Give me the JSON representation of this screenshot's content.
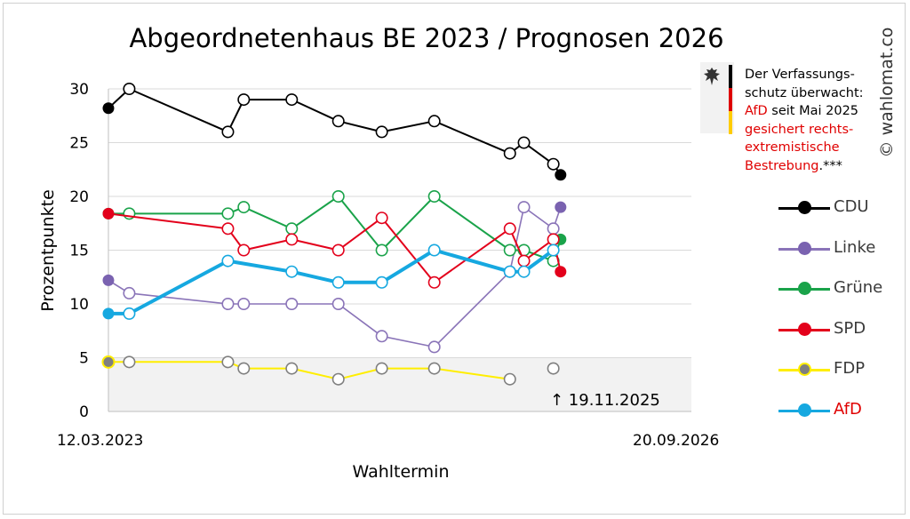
{
  "title": "Abgeordnetenhaus BE 2023 / Prognosen 2026",
  "side_credit": "© wahlomat.co",
  "notice": {
    "line1": "Der Verfassungs-",
    "line2": "schutz überwacht:",
    "line3_party": "AfD",
    "line3_rest": " seit Mai 2025",
    "line4": "gesichert rechts-",
    "line5": "extremistische",
    "line6": "Bestrebung",
    "line6_suffix": ".***",
    "flag_colors": [
      "#000000",
      "#dd0000",
      "#ffcc00"
    ]
  },
  "annotation": "↑ 19.11.2025",
  "colors": {
    "grid": "#d9d9d9",
    "threshold_band": "#f2f2f2",
    "axis": "#bfbfbf"
  },
  "chart_data": {
    "type": "line",
    "title": "Abgeordnetenhaus BE 2023 / Prognosen 2026",
    "xlabel": "Wahltermin",
    "ylabel": "Prozentpunkte",
    "x_start_label": "12.03.2023",
    "x_end_label": "20.09.2026",
    "xlim": [
      "2023-03-12",
      "2026-09-20"
    ],
    "ylim": [
      0,
      30
    ],
    "yticks": [
      0,
      5,
      10,
      15,
      20,
      25,
      30
    ],
    "grid": true,
    "legend_position": "right",
    "shaded_band": [
      0,
      5
    ],
    "series": [
      {
        "name": "CDU",
        "color": "#000000",
        "fill": "#000000",
        "label_color": "#3a3a3a",
        "width": 2,
        "points": [
          [
            "2023-03-12",
            28.2,
            "result"
          ],
          [
            "2023-04-27",
            30,
            "poll"
          ],
          [
            "2023-12-01",
            26,
            "poll"
          ],
          [
            "2024-01-05",
            29,
            "poll"
          ],
          [
            "2024-04-20",
            29,
            "poll"
          ],
          [
            "2024-08-01",
            27,
            "poll"
          ],
          [
            "2024-11-05",
            26,
            "poll"
          ],
          [
            "2025-03-01",
            27,
            "poll"
          ],
          [
            "2025-08-15",
            24,
            "poll"
          ],
          [
            "2025-09-15",
            25,
            "poll"
          ],
          [
            "2025-11-19",
            23,
            "poll"
          ],
          [
            "2025-12-05",
            22,
            "current"
          ]
        ]
      },
      {
        "name": "Linke",
        "color": "#8a74b8",
        "fill": "#7a62b0",
        "label_color": "#3a3a3a",
        "width": 1.6,
        "points": [
          [
            "2023-03-12",
            12.2,
            "result"
          ],
          [
            "2023-04-27",
            11,
            "poll"
          ],
          [
            "2023-12-01",
            10,
            "poll"
          ],
          [
            "2024-01-05",
            10,
            "poll"
          ],
          [
            "2024-04-20",
            10,
            "poll"
          ],
          [
            "2024-08-01",
            10,
            "poll"
          ],
          [
            "2024-11-05",
            7,
            "poll"
          ],
          [
            "2025-03-01",
            6,
            "poll"
          ],
          [
            "2025-08-15",
            13,
            "poll"
          ],
          [
            "2025-09-15",
            19,
            "poll"
          ],
          [
            "2025-11-19",
            17,
            "poll"
          ],
          [
            "2025-12-05",
            19,
            "current"
          ]
        ]
      },
      {
        "name": "Grüne",
        "color": "#1aa34a",
        "fill": "#1aa34a",
        "label_color": "#3a3a3a",
        "width": 2,
        "points": [
          [
            "2023-03-12",
            18.4,
            "result"
          ],
          [
            "2023-04-27",
            18.4,
            "poll"
          ],
          [
            "2023-12-01",
            18.4,
            "poll"
          ],
          [
            "2024-01-05",
            19,
            "poll"
          ],
          [
            "2024-04-20",
            17,
            "poll"
          ],
          [
            "2024-08-01",
            20,
            "poll"
          ],
          [
            "2024-11-05",
            15,
            "poll"
          ],
          [
            "2025-03-01",
            20,
            "poll"
          ],
          [
            "2025-08-15",
            15,
            "poll"
          ],
          [
            "2025-09-15",
            15,
            "poll"
          ],
          [
            "2025-11-19",
            14,
            "poll"
          ],
          [
            "2025-12-05",
            16,
            "current"
          ]
        ]
      },
      {
        "name": "SPD",
        "color": "#e3001b",
        "fill": "#e3001b",
        "label_color": "#3a3a3a",
        "width": 2,
        "points": [
          [
            "2023-03-12",
            18.4,
            "result"
          ],
          [
            "2023-12-01",
            17,
            "poll"
          ],
          [
            "2024-01-05",
            15,
            "poll"
          ],
          [
            "2024-04-20",
            16,
            "poll"
          ],
          [
            "2024-08-01",
            15,
            "poll"
          ],
          [
            "2024-11-05",
            18,
            "poll"
          ],
          [
            "2025-03-01",
            12,
            "poll"
          ],
          [
            "2025-08-15",
            17,
            "poll"
          ],
          [
            "2025-09-15",
            14,
            "poll"
          ],
          [
            "2025-11-19",
            16,
            "poll"
          ],
          [
            "2025-12-05",
            13,
            "current"
          ]
        ]
      },
      {
        "name": "FDP",
        "color": "#ffee00",
        "fill": "#7f7f7f",
        "stroke": "#ffee00",
        "label_color": "#3a3a3a",
        "width": 2,
        "points": [
          [
            "2023-03-12",
            4.6,
            "result"
          ],
          [
            "2023-04-27",
            4.6,
            "poll"
          ],
          [
            "2023-12-01",
            4.6,
            "poll"
          ],
          [
            "2024-01-05",
            4,
            "poll"
          ],
          [
            "2024-04-20",
            4,
            "poll"
          ],
          [
            "2024-08-01",
            3,
            "poll"
          ],
          [
            "2024-11-05",
            4,
            "poll"
          ],
          [
            "2025-03-01",
            4,
            "poll"
          ],
          [
            "2025-08-15",
            3,
            "poll"
          ],
          [
            "2025-11-19",
            4,
            "poll-gap"
          ]
        ]
      },
      {
        "name": "AfD",
        "color": "#16a8e0",
        "fill": "#16a8e0",
        "label_color": "#e00000",
        "width": 4,
        "points": [
          [
            "2023-03-12",
            9.1,
            "result"
          ],
          [
            "2023-04-27",
            9.1,
            "poll"
          ],
          [
            "2023-12-01",
            14,
            "poll"
          ],
          [
            "2024-04-20",
            13,
            "poll"
          ],
          [
            "2024-08-01",
            12,
            "poll"
          ],
          [
            "2024-11-05",
            12,
            "poll"
          ],
          [
            "2025-03-01",
            15,
            "poll"
          ],
          [
            "2025-08-15",
            13,
            "poll"
          ],
          [
            "2025-09-15",
            13,
            "poll"
          ],
          [
            "2025-11-19",
            15,
            "poll"
          ]
        ]
      }
    ]
  }
}
